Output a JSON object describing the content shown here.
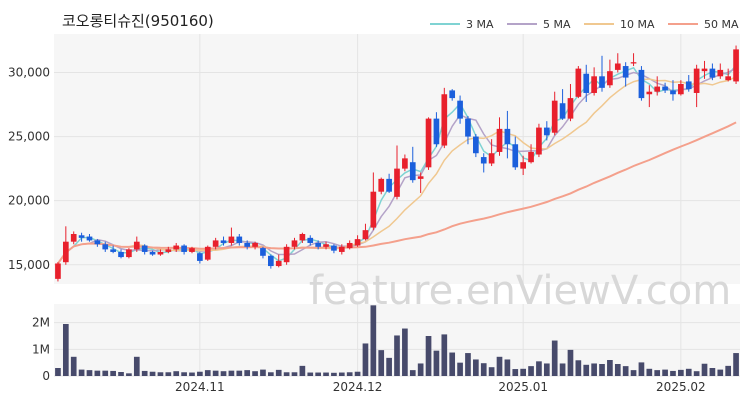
{
  "chart_data": {
    "type": "candlestick",
    "title": "코오롱티슈진(950160)",
    "watermark": "feature.enViewV.com",
    "price_axis": {
      "ylim": [
        13500,
        33000
      ],
      "ticks": [
        15000,
        20000,
        25000,
        30000
      ],
      "tick_labels": [
        "15,000",
        "20,000",
        "25,000",
        "30,000"
      ]
    },
    "volume_axis": {
      "ylim": [
        0,
        2700000
      ],
      "ticks": [
        0,
        1000000,
        2000000
      ],
      "tick_labels": [
        "0",
        "1M",
        "2M"
      ]
    },
    "x_labels": [
      {
        "label": "2024.11",
        "index": 18
      },
      {
        "label": "2024.12",
        "index": 38
      },
      {
        "label": "2025.01",
        "index": 59
      },
      {
        "label": "2025.02",
        "index": 79
      }
    ],
    "legend": [
      {
        "name": "3 MA",
        "color": "#7fd3d3"
      },
      {
        "name": "5 MA",
        "color": "#b4a3c8"
      },
      {
        "name": "10 MA",
        "color": "#f0c890"
      },
      {
        "name": "50 MA",
        "color": "#f4a08c"
      }
    ],
    "colors": {
      "up": "#e8202c",
      "down": "#1b5fdc",
      "volume": "#474a6b",
      "grid": "#e4e4e4",
      "plot_bg": "#f6f6f6"
    },
    "candles": [
      [
        13900,
        15100,
        13700,
        15200
      ],
      [
        15200,
        16800,
        15000,
        18000
      ],
      [
        16800,
        17400,
        16600,
        17600
      ],
      [
        17300,
        17100,
        16800,
        17500
      ],
      [
        17200,
        16900,
        16800,
        17400
      ],
      [
        16900,
        16600,
        16400,
        17000
      ],
      [
        16600,
        16200,
        16000,
        16800
      ],
      [
        16200,
        16000,
        15900,
        16500
      ],
      [
        16000,
        15600,
        15500,
        16200
      ],
      [
        15600,
        16200,
        15500,
        16300
      ],
      [
        16200,
        16800,
        16000,
        17200
      ],
      [
        16500,
        16000,
        15800,
        16600
      ],
      [
        16000,
        15800,
        15700,
        16100
      ],
      [
        15800,
        16000,
        15700,
        16200
      ],
      [
        16000,
        16200,
        15900,
        16400
      ],
      [
        16200,
        16500,
        16000,
        16700
      ],
      [
        16500,
        16000,
        15800,
        16600
      ],
      [
        16000,
        16300,
        15900,
        16400
      ],
      [
        15900,
        15300,
        15100,
        16000
      ],
      [
        15400,
        16400,
        15300,
        16500
      ],
      [
        16400,
        16900,
        16200,
        17100
      ],
      [
        16900,
        16700,
        16500,
        17200
      ],
      [
        16700,
        17200,
        16500,
        17900
      ],
      [
        17200,
        16700,
        16500,
        17400
      ],
      [
        16700,
        16400,
        16200,
        16900
      ],
      [
        16400,
        16700,
        16200,
        16800
      ],
      [
        16300,
        15700,
        15500,
        16400
      ],
      [
        15700,
        14900,
        14700,
        15800
      ],
      [
        14900,
        15300,
        14800,
        15800
      ],
      [
        15200,
        16400,
        15000,
        16600
      ],
      [
        16400,
        16900,
        16200,
        17100
      ],
      [
        16900,
        17400,
        16700,
        17500
      ],
      [
        17100,
        16700,
        16500,
        17300
      ],
      [
        16700,
        16400,
        16200,
        16900
      ],
      [
        16400,
        16600,
        16200,
        16800
      ],
      [
        16500,
        16100,
        15900,
        16600
      ],
      [
        16000,
        16400,
        15800,
        16600
      ],
      [
        16300,
        16700,
        16200,
        16900
      ],
      [
        16500,
        17000,
        16400,
        17300
      ],
      [
        17000,
        17700,
        16900,
        18200
      ],
      [
        17900,
        20700,
        17700,
        22200
      ],
      [
        20700,
        21700,
        20500,
        21800
      ],
      [
        21700,
        20700,
        20600,
        22100
      ],
      [
        20300,
        22500,
        20100,
        24300
      ],
      [
        22500,
        23300,
        22300,
        23600
      ],
      [
        23000,
        21600,
        21400,
        24200
      ],
      [
        21700,
        21900,
        20600,
        22200
      ],
      [
        22600,
        26400,
        22400,
        26500
      ],
      [
        26400,
        24400,
        24200,
        26900
      ],
      [
        24300,
        28300,
        24100,
        28800
      ],
      [
        28600,
        28000,
        27800,
        28700
      ],
      [
        27800,
        26400,
        26000,
        28200
      ],
      [
        26400,
        25000,
        24400,
        26600
      ],
      [
        25000,
        23700,
        23400,
        25200
      ],
      [
        23400,
        22900,
        22200,
        23700
      ],
      [
        22900,
        23700,
        22700,
        24800
      ],
      [
        23800,
        25600,
        23500,
        26500
      ],
      [
        25600,
        24400,
        23300,
        27000
      ],
      [
        24400,
        22600,
        22400,
        25000
      ],
      [
        22500,
        23000,
        22000,
        23500
      ],
      [
        23000,
        23800,
        22900,
        24400
      ],
      [
        23600,
        25700,
        23400,
        26000
      ],
      [
        25700,
        25100,
        24700,
        26200
      ],
      [
        25300,
        27800,
        25100,
        28500
      ],
      [
        27600,
        26400,
        26300,
        28700
      ],
      [
        26400,
        28000,
        26200,
        29100
      ],
      [
        28100,
        30300,
        28000,
        30500
      ],
      [
        29900,
        28400,
        27700,
        30600
      ],
      [
        28400,
        29700,
        28200,
        30400
      ],
      [
        29700,
        28800,
        28500,
        31300
      ],
      [
        29000,
        30100,
        28800,
        31000
      ],
      [
        30200,
        30700,
        30000,
        31500
      ],
      [
        30500,
        29600,
        28900,
        30800
      ],
      [
        30700,
        30800,
        30500,
        31500
      ],
      [
        30200,
        28000,
        27800,
        30500
      ],
      [
        28300,
        28500,
        27300,
        29000
      ],
      [
        28500,
        28900,
        28200,
        29700
      ],
      [
        28900,
        28600,
        28400,
        29200
      ],
      [
        28600,
        28300,
        27800,
        29400
      ],
      [
        28300,
        29100,
        28200,
        29400
      ],
      [
        29300,
        28700,
        28500,
        29800
      ],
      [
        28400,
        30300,
        27300,
        30600
      ],
      [
        30100,
        30300,
        29500,
        30900
      ],
      [
        30300,
        29600,
        29400,
        30700
      ],
      [
        29700,
        30200,
        29500,
        30700
      ],
      [
        29400,
        29700,
        29300,
        30300
      ],
      [
        29300,
        31800,
        29100,
        32100
      ]
    ],
    "volume_millions": [
      0.3,
      1.95,
      0.72,
      0.24,
      0.22,
      0.2,
      0.2,
      0.19,
      0.15,
      0.1,
      0.72,
      0.19,
      0.16,
      0.14,
      0.14,
      0.18,
      0.14,
      0.13,
      0.16,
      0.22,
      0.2,
      0.18,
      0.2,
      0.2,
      0.22,
      0.18,
      0.24,
      0.14,
      0.23,
      0.14,
      0.14,
      0.38,
      0.13,
      0.13,
      0.13,
      0.12,
      0.13,
      0.14,
      0.16,
      1.22,
      2.65,
      0.97,
      0.68,
      1.52,
      1.78,
      0.22,
      0.47,
      1.5,
      0.95,
      1.56,
      0.88,
      0.5,
      0.86,
      0.62,
      0.48,
      0.33,
      0.72,
      0.62,
      0.26,
      0.27,
      0.37,
      0.55,
      0.47,
      1.33,
      0.47,
      0.98,
      0.59,
      0.42,
      0.47,
      0.45,
      0.6,
      0.45,
      0.37,
      0.22,
      0.51,
      0.27,
      0.22,
      0.24,
      0.19,
      0.23,
      0.27,
      0.18,
      0.46,
      0.3,
      0.24,
      0.38,
      0.86
    ]
  }
}
